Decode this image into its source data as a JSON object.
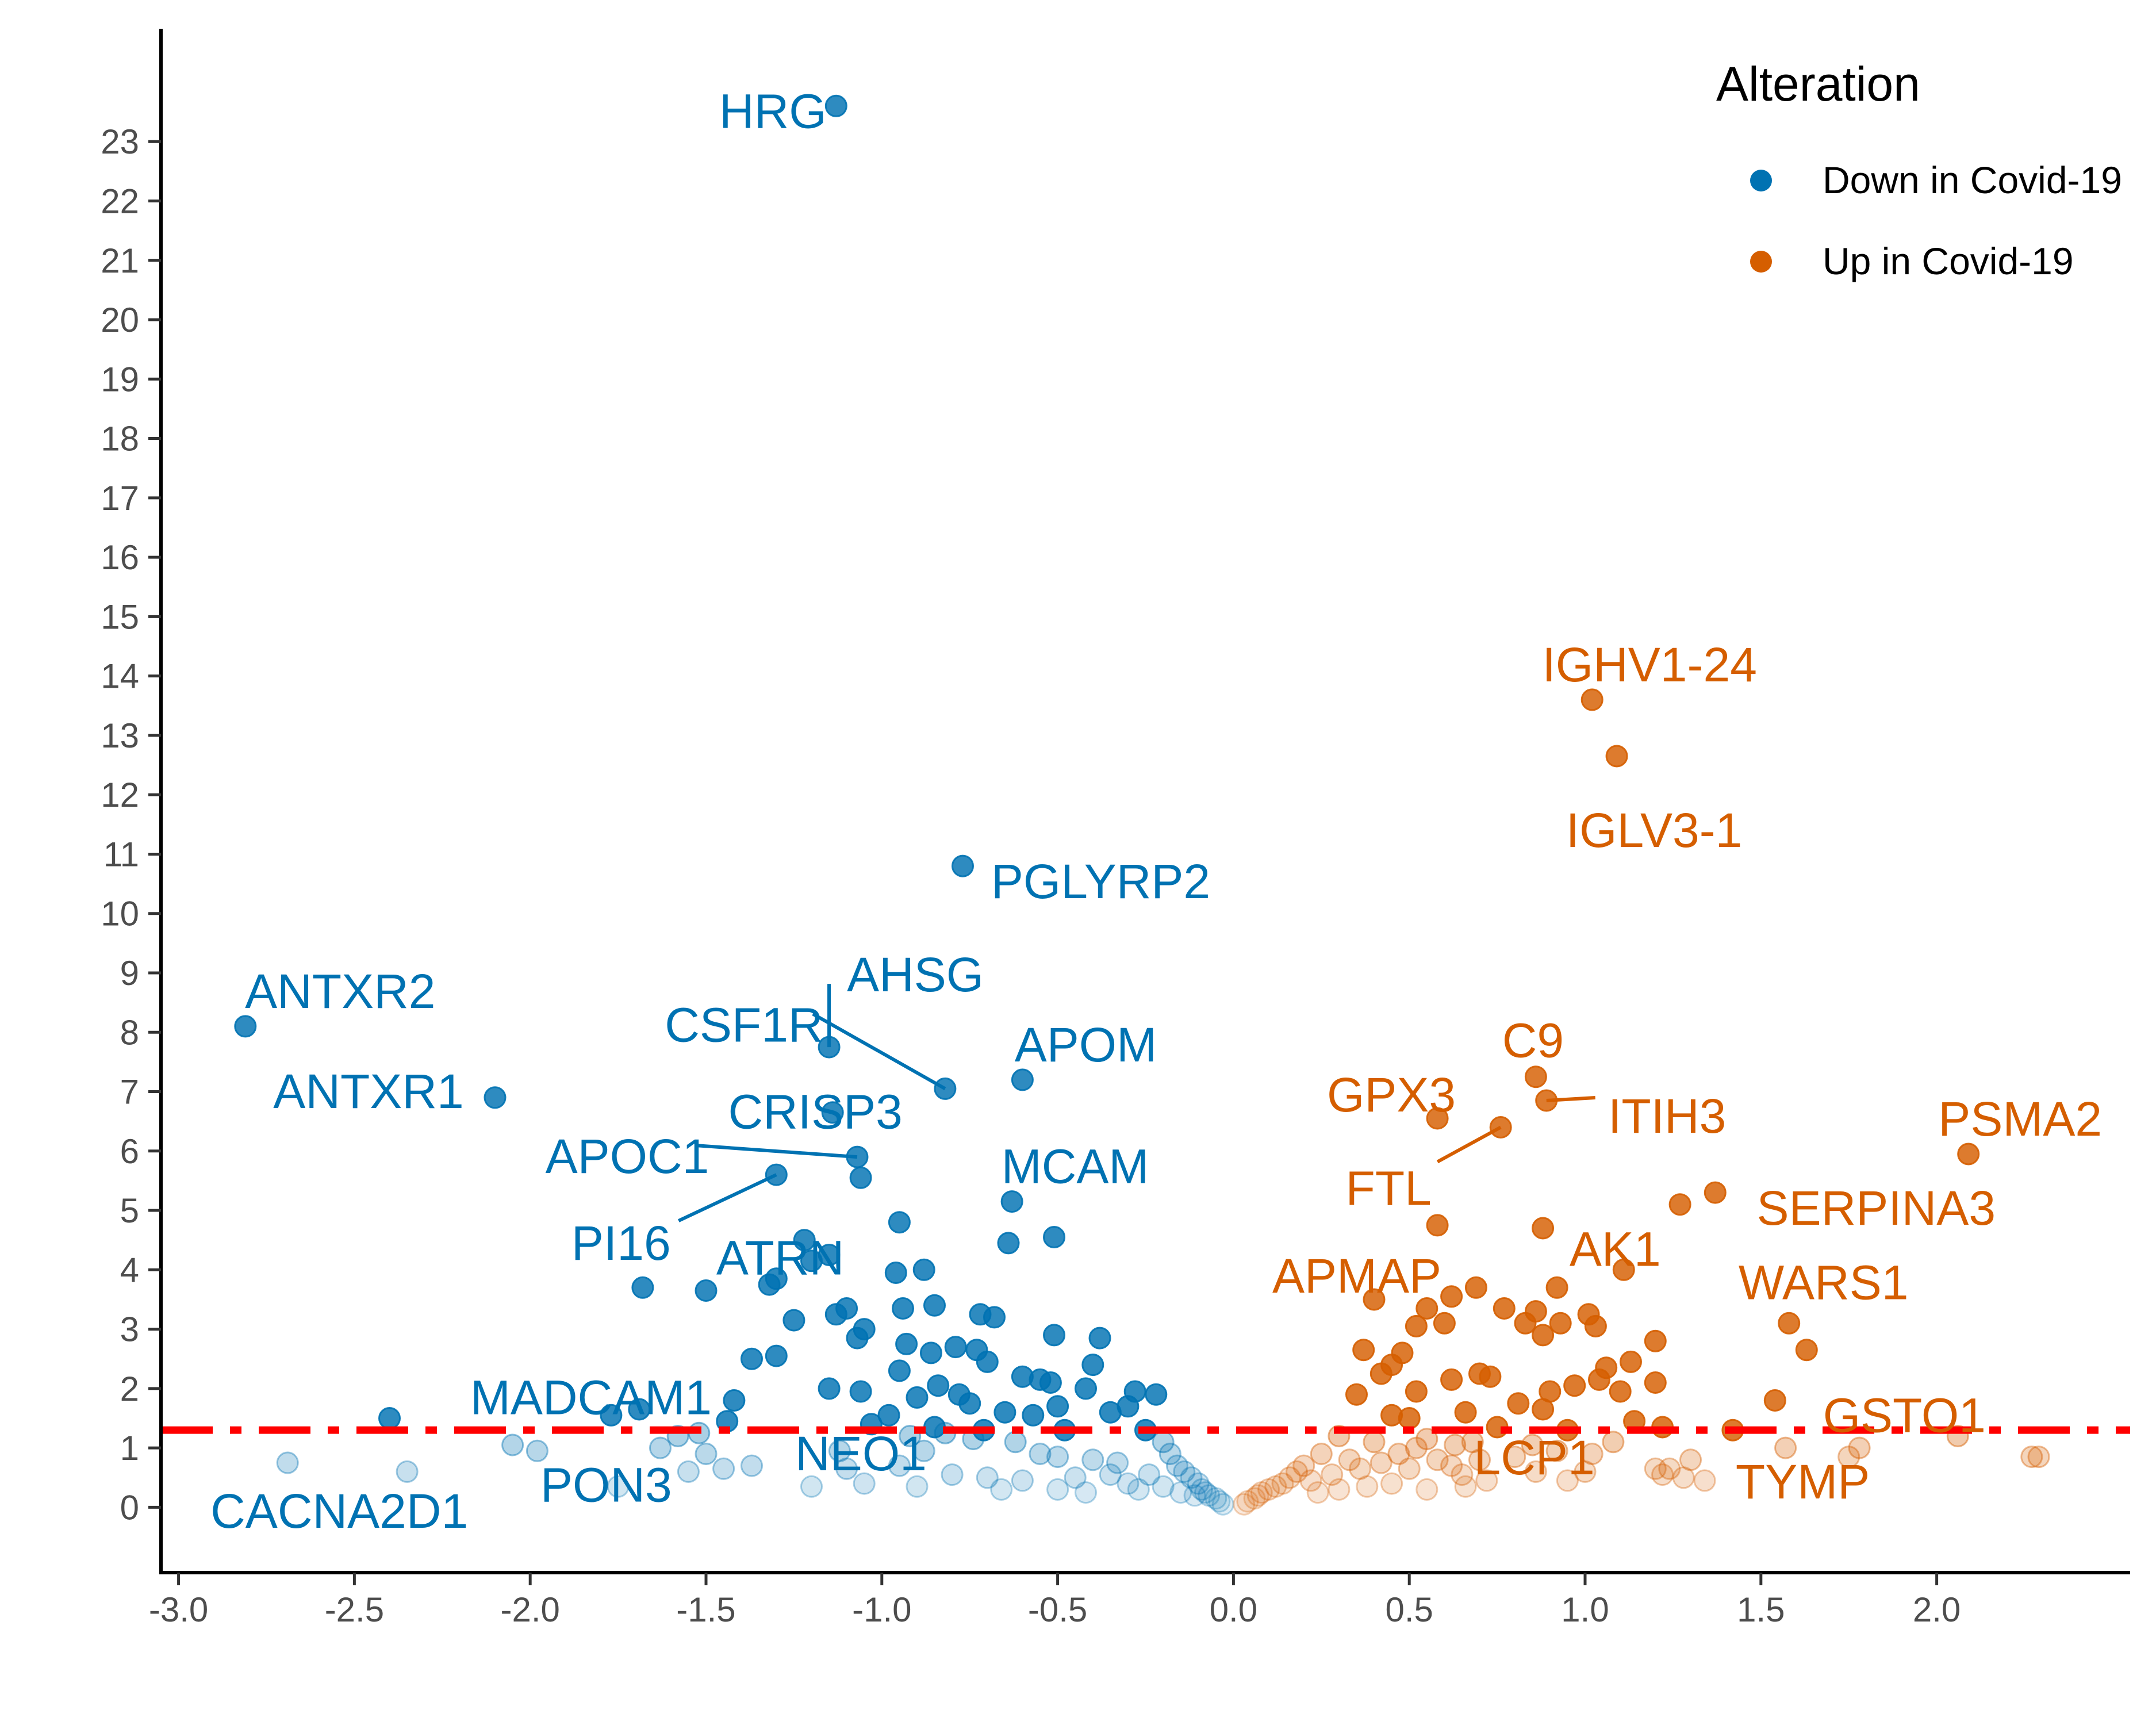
{
  "chart_data": {
    "type": "scatter",
    "title": "",
    "xlabel": "",
    "ylabel": "",
    "xlim": [
      -3.05,
      2.55
    ],
    "ylim": [
      -1.1,
      24.9
    ],
    "xticks": [
      -3.0,
      -2.5,
      -2.0,
      -1.5,
      -1.0,
      -0.5,
      0.0,
      0.5,
      1.0,
      1.5,
      2.0
    ],
    "xtick_labels": [
      "-3.0",
      "-2.5",
      "-2.0",
      "-1.5",
      "-1.0",
      "-0.5",
      "0.0",
      "0.5",
      "1.0",
      "1.5",
      "2.0"
    ],
    "yticks": [
      0,
      1,
      2,
      3,
      4,
      5,
      6,
      7,
      8,
      9,
      10,
      11,
      12,
      13,
      14,
      15,
      16,
      17,
      18,
      19,
      20,
      21,
      22,
      23
    ],
    "ytick_labels": [
      "0",
      "1",
      "2",
      "3",
      "4",
      "5",
      "6",
      "7",
      "8",
      "9",
      "10",
      "11",
      "12",
      "13",
      "14",
      "15",
      "16",
      "17",
      "18",
      "19",
      "20",
      "21",
      "22",
      "23"
    ],
    "threshold_y": 1.3,
    "threshold_color": "#ff0000",
    "grid": false,
    "legend": {
      "title": "Alteration",
      "placement": "top-right",
      "entries": [
        {
          "label": "Down in Covid-19",
          "color": "#0072b2"
        },
        {
          "label": "Up in Covid-19",
          "color": "#d55e00"
        }
      ]
    },
    "series": [
      {
        "name": "Down in Covid-19",
        "color": "#0072b2",
        "points": [
          [
            -1.13,
            23.6
          ],
          [
            -0.77,
            10.8
          ],
          [
            -2.81,
            8.1
          ],
          [
            -2.1,
            6.9
          ],
          [
            -1.15,
            7.75
          ],
          [
            -0.82,
            7.05
          ],
          [
            -0.6,
            7.2
          ],
          [
            -1.14,
            6.65
          ],
          [
            -1.07,
            5.9
          ],
          [
            -1.06,
            5.55
          ],
          [
            -1.3,
            5.6
          ],
          [
            -0.63,
            5.15
          ],
          [
            -0.95,
            4.8
          ],
          [
            -0.51,
            4.55
          ],
          [
            -1.22,
            4.5
          ],
          [
            -1.15,
            4.25
          ],
          [
            -1.2,
            4.15
          ],
          [
            -0.64,
            4.45
          ],
          [
            -0.88,
            4.0
          ],
          [
            -0.96,
            3.95
          ],
          [
            -1.3,
            3.85
          ],
          [
            -1.32,
            3.75
          ],
          [
            -1.68,
            3.7
          ],
          [
            -1.5,
            3.65
          ],
          [
            -0.85,
            3.4
          ],
          [
            -0.94,
            3.35
          ],
          [
            -1.1,
            3.35
          ],
          [
            -1.13,
            3.25
          ],
          [
            -0.72,
            3.25
          ],
          [
            -0.68,
            3.2
          ],
          [
            -1.25,
            3.15
          ],
          [
            -1.05,
            3.0
          ],
          [
            -0.51,
            2.9
          ],
          [
            -0.38,
            2.85
          ],
          [
            -1.07,
            2.85
          ],
          [
            -0.93,
            2.75
          ],
          [
            -0.79,
            2.7
          ],
          [
            -0.73,
            2.65
          ],
          [
            -0.86,
            2.6
          ],
          [
            -1.3,
            2.55
          ],
          [
            -1.37,
            2.5
          ],
          [
            -0.7,
            2.45
          ],
          [
            -0.4,
            2.4
          ],
          [
            -0.95,
            2.3
          ],
          [
            -0.6,
            2.2
          ],
          [
            -0.55,
            2.15
          ],
          [
            -0.52,
            2.1
          ],
          [
            -0.84,
            2.05
          ],
          [
            -1.15,
            2.0
          ],
          [
            -1.06,
            1.95
          ],
          [
            -0.42,
            2.0
          ],
          [
            -0.9,
            1.85
          ],
          [
            -0.78,
            1.9
          ],
          [
            -0.75,
            1.75
          ],
          [
            -1.42,
            1.8
          ],
          [
            -0.5,
            1.7
          ],
          [
            -0.35,
            1.6
          ],
          [
            -0.65,
            1.6
          ],
          [
            -0.57,
            1.55
          ],
          [
            -1.44,
            1.45
          ],
          [
            -1.69,
            1.65
          ],
          [
            -1.77,
            1.55
          ],
          [
            -2.4,
            1.5
          ],
          [
            -0.98,
            1.55
          ],
          [
            -1.03,
            1.4
          ],
          [
            -0.85,
            1.35
          ],
          [
            -0.71,
            1.3
          ],
          [
            -0.82,
            1.25
          ],
          [
            -0.48,
            1.3
          ],
          [
            -0.92,
            1.2
          ],
          [
            -0.74,
            1.15
          ],
          [
            -0.62,
            1.1
          ],
          [
            -1.52,
            1.25
          ],
          [
            -1.58,
            1.2
          ],
          [
            -2.05,
            1.05
          ],
          [
            -1.98,
            0.95
          ],
          [
            -1.63,
            1.0
          ],
          [
            -1.5,
            0.9
          ],
          [
            -1.12,
            0.95
          ],
          [
            -0.88,
            0.95
          ],
          [
            -0.55,
            0.9
          ],
          [
            -0.5,
            0.85
          ],
          [
            -0.4,
            0.8
          ],
          [
            -0.33,
            0.75
          ],
          [
            -2.69,
            0.75
          ],
          [
            -2.35,
            0.6
          ],
          [
            -1.37,
            0.7
          ],
          [
            -1.45,
            0.65
          ],
          [
            -1.55,
            0.6
          ],
          [
            -1.1,
            0.65
          ],
          [
            -0.95,
            0.7
          ],
          [
            -0.8,
            0.55
          ],
          [
            -0.7,
            0.5
          ],
          [
            -0.6,
            0.45
          ],
          [
            -0.45,
            0.5
          ],
          [
            -0.3,
            0.4
          ],
          [
            -0.28,
            1.95
          ],
          [
            -0.22,
            1.9
          ],
          [
            -0.3,
            1.7
          ],
          [
            -0.25,
            1.3
          ],
          [
            -0.2,
            1.1
          ],
          [
            -0.18,
            0.9
          ],
          [
            -0.16,
            0.7
          ],
          [
            -0.14,
            0.6
          ],
          [
            -0.12,
            0.5
          ],
          [
            -0.1,
            0.4
          ],
          [
            -0.09,
            0.3
          ],
          [
            -0.08,
            0.25
          ],
          [
            -0.07,
            0.2
          ],
          [
            -0.05,
            0.15
          ],
          [
            -0.04,
            0.1
          ],
          [
            -0.03,
            0.05
          ],
          [
            -0.24,
            0.55
          ],
          [
            -0.27,
            0.3
          ],
          [
            -0.35,
            0.55
          ],
          [
            -0.2,
            0.35
          ],
          [
            -0.15,
            0.25
          ],
          [
            -0.11,
            0.2
          ],
          [
            -1.75,
            0.35
          ],
          [
            -1.2,
            0.35
          ],
          [
            -1.05,
            0.4
          ],
          [
            -0.9,
            0.35
          ],
          [
            -0.66,
            0.3
          ],
          [
            -0.5,
            0.3
          ],
          [
            -0.42,
            0.25
          ]
        ]
      },
      {
        "name": "Up in Covid-19",
        "color": "#d55e00",
        "points": [
          [
            1.02,
            13.6
          ],
          [
            1.09,
            12.65
          ],
          [
            0.86,
            7.25
          ],
          [
            0.89,
            6.85
          ],
          [
            0.58,
            6.55
          ],
          [
            0.76,
            6.4
          ],
          [
            2.09,
            5.95
          ],
          [
            1.37,
            5.3
          ],
          [
            1.27,
            5.1
          ],
          [
            0.58,
            4.75
          ],
          [
            0.88,
            4.7
          ],
          [
            1.11,
            4.0
          ],
          [
            0.69,
            3.7
          ],
          [
            0.92,
            3.7
          ],
          [
            0.4,
            3.5
          ],
          [
            0.62,
            3.55
          ],
          [
            0.55,
            3.35
          ],
          [
            0.77,
            3.35
          ],
          [
            0.86,
            3.3
          ],
          [
            1.01,
            3.25
          ],
          [
            0.83,
            3.1
          ],
          [
            0.93,
            3.1
          ],
          [
            1.58,
            3.1
          ],
          [
            0.6,
            3.1
          ],
          [
            0.52,
            3.05
          ],
          [
            1.03,
            3.05
          ],
          [
            0.88,
            2.9
          ],
          [
            1.2,
            2.8
          ],
          [
            1.63,
            2.65
          ],
          [
            0.37,
            2.65
          ],
          [
            0.48,
            2.6
          ],
          [
            0.45,
            2.4
          ],
          [
            1.06,
            2.35
          ],
          [
            1.13,
            2.45
          ],
          [
            0.42,
            2.25
          ],
          [
            1.04,
            2.15
          ],
          [
            0.97,
            2.05
          ],
          [
            0.7,
            2.25
          ],
          [
            0.62,
            2.15
          ],
          [
            0.73,
            2.2
          ],
          [
            1.2,
            2.1
          ],
          [
            0.9,
            1.95
          ],
          [
            1.1,
            1.95
          ],
          [
            0.52,
            1.95
          ],
          [
            0.35,
            1.9
          ],
          [
            1.54,
            1.8
          ],
          [
            0.81,
            1.75
          ],
          [
            0.88,
            1.65
          ],
          [
            0.66,
            1.6
          ],
          [
            0.45,
            1.55
          ],
          [
            0.5,
            1.5
          ],
          [
            0.75,
            1.35
          ],
          [
            0.95,
            1.3
          ],
          [
            1.14,
            1.45
          ],
          [
            1.22,
            1.35
          ],
          [
            1.42,
            1.3
          ],
          [
            2.06,
            1.2
          ],
          [
            0.55,
            1.15
          ],
          [
            0.3,
            1.2
          ],
          [
            0.4,
            1.1
          ],
          [
            0.63,
            1.05
          ],
          [
            0.68,
            1.1
          ],
          [
            1.08,
            1.1
          ],
          [
            1.57,
            1.0
          ],
          [
            1.78,
            1.0
          ],
          [
            1.75,
            0.85
          ],
          [
            2.27,
            0.85
          ],
          [
            2.29,
            0.85
          ],
          [
            0.8,
            0.85
          ],
          [
            0.7,
            0.8
          ],
          [
            1.02,
            0.9
          ],
          [
            1.3,
            0.8
          ],
          [
            1.24,
            0.65
          ],
          [
            1.2,
            0.65
          ],
          [
            1.22,
            0.55
          ],
          [
            1.28,
            0.5
          ],
          [
            1.34,
            0.45
          ],
          [
            0.86,
            0.6
          ],
          [
            0.65,
            0.55
          ],
          [
            0.5,
            0.65
          ],
          [
            0.33,
            0.8
          ],
          [
            0.25,
            0.9
          ],
          [
            0.2,
            0.7
          ],
          [
            0.18,
            0.6
          ],
          [
            0.16,
            0.5
          ],
          [
            0.14,
            0.4
          ],
          [
            0.12,
            0.35
          ],
          [
            0.1,
            0.3
          ],
          [
            0.08,
            0.25
          ],
          [
            0.07,
            0.2
          ],
          [
            0.06,
            0.15
          ],
          [
            0.04,
            0.1
          ],
          [
            0.03,
            0.05
          ],
          [
            0.22,
            0.45
          ],
          [
            0.28,
            0.55
          ],
          [
            0.36,
            0.65
          ],
          [
            0.42,
            0.75
          ],
          [
            0.47,
            0.9
          ],
          [
            0.52,
            1.0
          ],
          [
            0.58,
            0.8
          ],
          [
            0.62,
            0.7
          ],
          [
            0.72,
            0.45
          ],
          [
            0.66,
            0.35
          ],
          [
            0.55,
            0.3
          ],
          [
            0.45,
            0.4
          ],
          [
            0.38,
            0.35
          ],
          [
            0.3,
            0.3
          ],
          [
            0.24,
            0.25
          ],
          [
            0.85,
            1.05
          ],
          [
            0.92,
            0.95
          ],
          [
            1.0,
            0.6
          ],
          [
            0.95,
            0.45
          ]
        ]
      }
    ],
    "annotations": [
      {
        "text": "HRG",
        "series": "Down in Covid-19",
        "x": -1.13,
        "y": 23.6
      },
      {
        "text": "PGLYRP2",
        "series": "Down in Covid-19",
        "x": -0.77,
        "y": 10.8
      },
      {
        "text": "ANTXR2",
        "series": "Down in Covid-19",
        "x": -2.81,
        "y": 8.1
      },
      {
        "text": "AHSG",
        "series": "Down in Covid-19",
        "x": -1.15,
        "y": 7.75
      },
      {
        "text": "CSF1R",
        "series": "Down in Covid-19",
        "x": -0.82,
        "y": 7.05
      },
      {
        "text": "APOM",
        "series": "Down in Covid-19",
        "x": -0.6,
        "y": 7.2
      },
      {
        "text": "ANTXR1",
        "series": "Down in Covid-19",
        "x": -2.1,
        "y": 6.9
      },
      {
        "text": "CRISP3",
        "series": "Down in Covid-19",
        "x": -1.14,
        "y": 6.65
      },
      {
        "text": "APOC1",
        "series": "Down in Covid-19",
        "x": -1.07,
        "y": 5.9
      },
      {
        "text": "MCAM",
        "series": "Down in Covid-19",
        "x": -0.63,
        "y": 5.15
      },
      {
        "text": "PI16",
        "series": "Down in Covid-19",
        "x": -1.3,
        "y": 5.6
      },
      {
        "text": "ATRN",
        "series": "Down in Covid-19",
        "x": -1.06,
        "y": 5.55
      },
      {
        "text": "MADCAM1",
        "series": "Down in Covid-19",
        "x": -1.77,
        "y": 1.55
      },
      {
        "text": "CACNA2D1",
        "series": "Down in Covid-19",
        "x": -2.69,
        "y": 0.75
      },
      {
        "text": "PON3",
        "series": "Down in Covid-19",
        "x": -1.98,
        "y": 0.95
      },
      {
        "text": "NEO1",
        "series": "Down in Covid-19",
        "x": -1.37,
        "y": 0.7
      },
      {
        "text": "IGHV1-24",
        "series": "Up in Covid-19",
        "x": 1.02,
        "y": 13.6
      },
      {
        "text": "IGLV3-1",
        "series": "Up in Covid-19",
        "x": 1.09,
        "y": 12.65
      },
      {
        "text": "C9",
        "series": "Up in Covid-19",
        "x": 0.86,
        "y": 7.25
      },
      {
        "text": "GPX3",
        "series": "Up in Covid-19",
        "x": 0.58,
        "y": 6.55
      },
      {
        "text": "ITIH3",
        "series": "Up in Covid-19",
        "x": 0.89,
        "y": 6.85
      },
      {
        "text": "PSMA2",
        "series": "Up in Covid-19",
        "x": 2.09,
        "y": 5.95
      },
      {
        "text": "FTL",
        "series": "Up in Covid-19",
        "x": 0.76,
        "y": 6.4
      },
      {
        "text": "LCP1",
        "series": "Up in Covid-19",
        "x": 0.88,
        "y": 4.7
      },
      {
        "text": "SERPINA3",
        "series": "Up in Covid-19",
        "x": 1.37,
        "y": 5.3
      },
      {
        "text": "AK1",
        "series": "Up in Covid-19",
        "x": 1.11,
        "y": 4.0
      },
      {
        "text": "APMAP",
        "series": "Up in Covid-19",
        "x": 0.4,
        "y": 3.5
      },
      {
        "text": "WARS1",
        "series": "Up in Covid-19",
        "x": 1.58,
        "y": 3.1
      },
      {
        "text": "GSTO1",
        "series": "Up in Covid-19",
        "x": 1.63,
        "y": 2.65
      },
      {
        "text": "TYMP",
        "series": "Up in Covid-19",
        "x": 1.57,
        "y": 1.0
      }
    ]
  }
}
